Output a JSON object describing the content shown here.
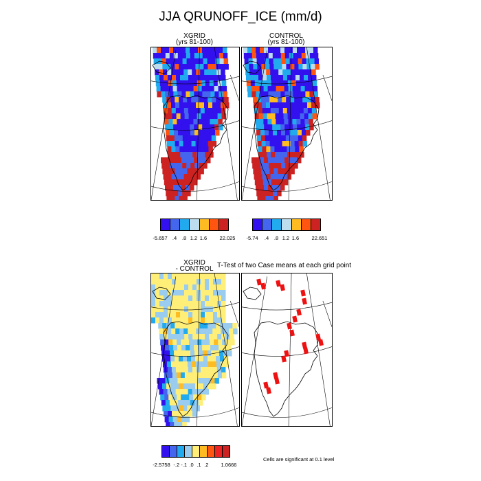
{
  "title": "JJA QRUNOFF_ICE (mm/d)",
  "panels": {
    "xgrid": {
      "title": "XGRID\n(yrs 81-100)"
    },
    "control": {
      "title": "CONTROL\n(yrs 81-100)"
    },
    "diff": {
      "title": "XGRID\n- CONTROL"
    },
    "ttest": {
      "title": "T-Test of two Case means at each grid point"
    }
  },
  "colors": {
    "abs_levels": [
      "#3311ee",
      "#4466ee",
      "#22aaee",
      "#bbddee",
      "#ffbb22",
      "#ff5511",
      "#cc2222"
    ],
    "diff_levels": [
      "#3311ee",
      "#4466ee",
      "#22aaee",
      "#99ccee",
      "#ffee77",
      "#ffbb22",
      "#ff5511",
      "#ee2222",
      "#cc2222"
    ],
    "significance": "#ee1111"
  },
  "legend_xgrid": {
    "ticks": [
      "-5.657",
      ".4",
      ".8",
      "1.2",
      "1.6",
      "22.025"
    ]
  },
  "legend_control": {
    "ticks": [
      "-5.74",
      ".4",
      ".8",
      "1.2",
      "1.6",
      "22.651"
    ]
  },
  "legend_diff": {
    "ticks": [
      "-2.5758",
      "-.2",
      "-.1",
      ".0",
      ".1",
      ".2",
      "1.0666"
    ]
  },
  "note": "Cells are significant at 0.1 level",
  "chart_data": [
    {
      "type": "heatmap",
      "title": "XGRID (yrs 81-100)",
      "variable": "JJA QRUNOFF_ICE (mm/d)",
      "levels": [
        -5.657,
        0.4,
        0.8,
        1.2,
        1.6,
        22.025
      ],
      "pattern": "low/negative values (blue) over the ice-sheet interior, high values (red) along the southern and western margins"
    },
    {
      "type": "heatmap",
      "title": "CONTROL (yrs 81-100)",
      "variable": "JJA QRUNOFF_ICE (mm/d)",
      "levels": [
        -5.74,
        0.4,
        0.8,
        1.2,
        1.6,
        22.651
      ],
      "pattern": "low/negative values (blue) over the ice-sheet interior, high values (red) along the southern and western margins"
    },
    {
      "type": "heatmap",
      "title": "XGRID - CONTROL",
      "levels": [
        -2.5758,
        -0.2,
        -0.1,
        0.0,
        0.1,
        0.2,
        1.0666
      ],
      "pattern": "mostly near-zero (light blue / yellow) with negative cells along the southern and western margin"
    },
    {
      "type": "heatmap",
      "title": "T-Test of two Case means at each grid point",
      "significance_level": 0.1,
      "pattern": "scattered significant cells in the north, east and south-west"
    }
  ]
}
